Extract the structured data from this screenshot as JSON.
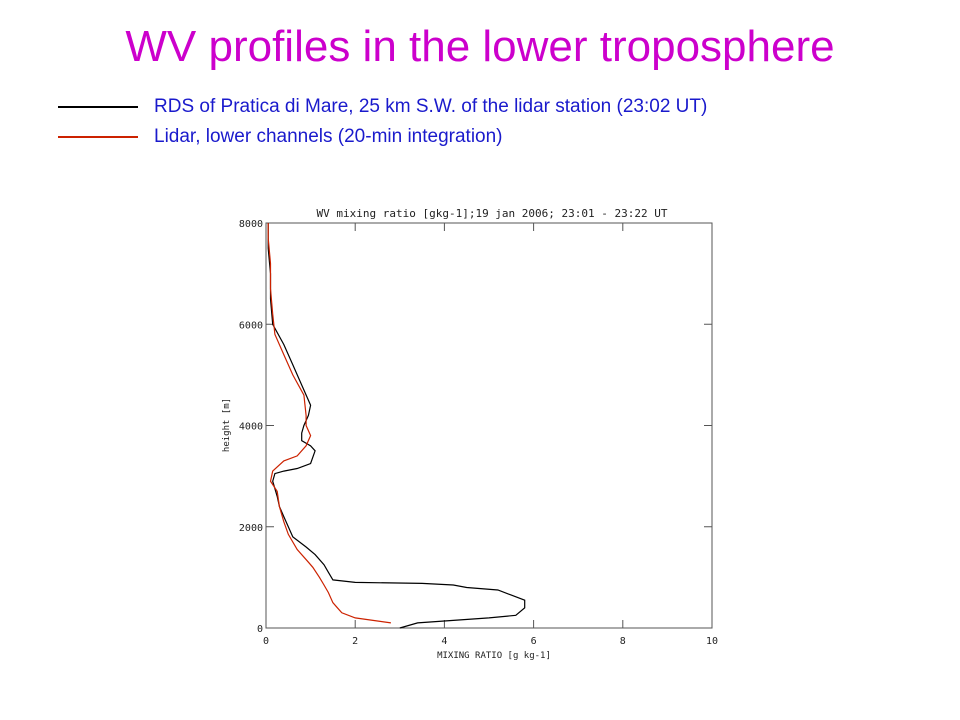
{
  "slide": {
    "title": "WV profiles in the lower troposphere"
  },
  "legend": [
    {
      "label": "RDS of Pratica di Mare, 25 km S.W. of the lidar station (23:02 UT)",
      "color": "#000000"
    },
    {
      "label": "Lidar, lower channels (20-min integration)",
      "color": "#cc2200"
    }
  ],
  "chart_data": {
    "type": "line",
    "title": "WV mixing ratio [gkg-1];19 jan 2006;  23:01 - 23:22 UT",
    "xlabel": "MIXING RATIO [g kg-1]",
    "ylabel": "height [m]",
    "xlim": [
      0,
      10
    ],
    "ylim": [
      0,
      8000
    ],
    "xticks": [
      0,
      2,
      4,
      6,
      8,
      10
    ],
    "yticks": [
      0,
      2000,
      4000,
      6000,
      8000
    ],
    "grid": false,
    "series": [
      {
        "color": "#000000",
        "points": [
          [
            3.0,
            0
          ],
          [
            3.4,
            100
          ],
          [
            4.2,
            150
          ],
          [
            5.0,
            200
          ],
          [
            5.6,
            250
          ],
          [
            5.8,
            400
          ],
          [
            5.8,
            550
          ],
          [
            5.5,
            650
          ],
          [
            5.2,
            750
          ],
          [
            4.5,
            800
          ],
          [
            4.2,
            850
          ],
          [
            3.5,
            880
          ],
          [
            2.0,
            900
          ],
          [
            1.5,
            950
          ],
          [
            1.4,
            1100
          ],
          [
            1.3,
            1250
          ],
          [
            1.1,
            1450
          ],
          [
            0.9,
            1600
          ],
          [
            0.6,
            1800
          ],
          [
            0.5,
            2000
          ],
          [
            0.4,
            2200
          ],
          [
            0.3,
            2400
          ],
          [
            0.25,
            2600
          ],
          [
            0.15,
            2900
          ],
          [
            0.2,
            3050
          ],
          [
            0.4,
            3100
          ],
          [
            0.7,
            3150
          ],
          [
            1.0,
            3250
          ],
          [
            1.1,
            3500
          ],
          [
            1.0,
            3600
          ],
          [
            0.8,
            3700
          ],
          [
            0.8,
            3850
          ],
          [
            0.85,
            4000
          ],
          [
            0.95,
            4200
          ],
          [
            1.0,
            4400
          ],
          [
            0.8,
            4800
          ],
          [
            0.6,
            5200
          ],
          [
            0.4,
            5600
          ],
          [
            0.15,
            6000
          ],
          [
            0.1,
            6500
          ],
          [
            0.1,
            7000
          ],
          [
            0.05,
            7500
          ],
          [
            0.05,
            8000
          ]
        ]
      },
      {
        "color": "#cc2200",
        "points": [
          [
            2.8,
            100
          ],
          [
            2.4,
            150
          ],
          [
            2.0,
            200
          ],
          [
            1.7,
            300
          ],
          [
            1.6,
            400
          ],
          [
            1.5,
            500
          ],
          [
            1.4,
            700
          ],
          [
            1.3,
            850
          ],
          [
            1.2,
            1000
          ],
          [
            1.05,
            1200
          ],
          [
            0.95,
            1300
          ],
          [
            0.7,
            1550
          ],
          [
            0.5,
            1850
          ],
          [
            0.4,
            2100
          ],
          [
            0.3,
            2400
          ],
          [
            0.25,
            2700
          ],
          [
            0.1,
            2900
          ],
          [
            0.15,
            3100
          ],
          [
            0.4,
            3300
          ],
          [
            0.7,
            3400
          ],
          [
            0.9,
            3600
          ],
          [
            1.0,
            3800
          ],
          [
            0.9,
            4000
          ],
          [
            0.9,
            4200
          ],
          [
            0.85,
            4600
          ],
          [
            0.6,
            5000
          ],
          [
            0.4,
            5400
          ],
          [
            0.2,
            5800
          ],
          [
            0.15,
            6200
          ],
          [
            0.1,
            6700
          ],
          [
            0.1,
            7200
          ],
          [
            0.05,
            7700
          ],
          [
            0.05,
            8000
          ]
        ]
      }
    ]
  }
}
